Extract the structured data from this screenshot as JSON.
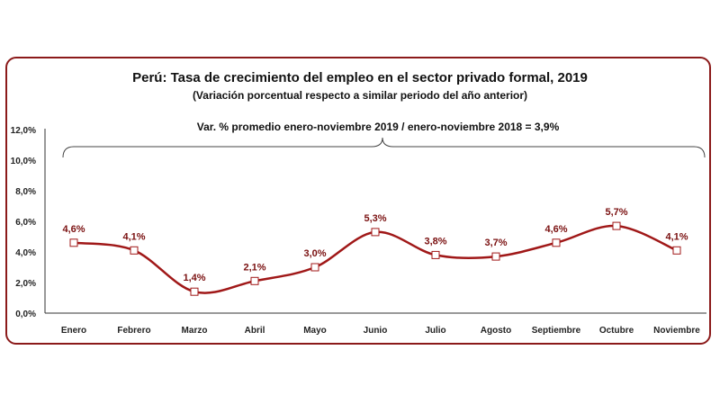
{
  "chart_data": {
    "type": "line",
    "title": "Perú: Tasa de crecimiento del empleo en el sector privado formal, 2019",
    "subtitle": "(Variación porcentual respecto a similar periodo del año anterior)",
    "annotation": "Var. % promedio  enero-noviembre  2019 / enero-noviembre  2018 = 3,9%",
    "categories": [
      "Enero",
      "Febrero",
      "Marzo",
      "Abril",
      "Mayo",
      "Junio",
      "Julio",
      "Agosto",
      "Septiembre",
      "Octubre",
      "Noviembre"
    ],
    "values": [
      4.6,
      4.1,
      1.4,
      2.1,
      3.0,
      5.3,
      3.8,
      3.7,
      4.6,
      5.7,
      4.1
    ],
    "data_labels": [
      "4,6%",
      "4,1%",
      "1,4%",
      "2,1%",
      "3,0%",
      "5,3%",
      "3,8%",
      "3,7%",
      "4,6%",
      "5,7%",
      "4,1%"
    ],
    "yticks": [
      "0,0%",
      "2,0%",
      "4,0%",
      "6,0%",
      "8,0%",
      "10,0%",
      "12,0%"
    ],
    "ylim": [
      0,
      12
    ],
    "grid": false,
    "line_color": "#a01818",
    "label_color": "#7a1010"
  }
}
